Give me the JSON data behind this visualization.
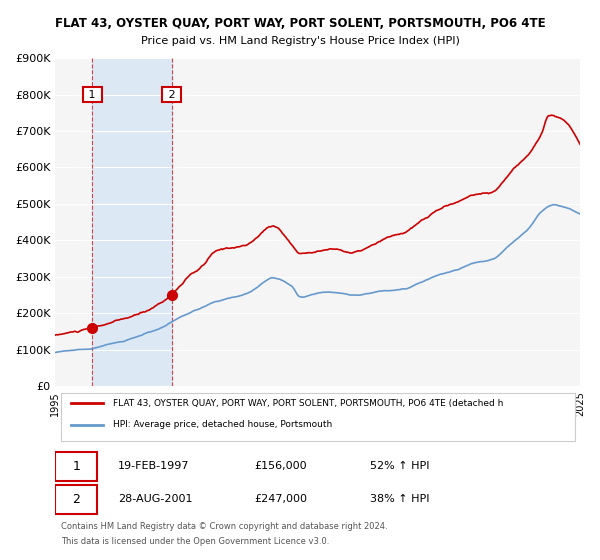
{
  "title": "FLAT 43, OYSTER QUAY, PORT WAY, PORT SOLENT, PORTSMOUTH, PO6 4TE",
  "subtitle": "Price paid vs. HM Land Registry's House Price Index (HPI)",
  "red_label": "FLAT 43, OYSTER QUAY, PORT WAY, PORT SOLENT, PORTSMOUTH, PO6 4TE (detached h",
  "blue_label": "HPI: Average price, detached house, Portsmouth",
  "sale1_date": "19-FEB-1997",
  "sale1_price": 156000,
  "sale1_hpi": "52% ↑ HPI",
  "sale2_date": "28-AUG-2001",
  "sale2_price": 247000,
  "sale2_hpi": "38% ↑ HPI",
  "footer1": "Contains HM Land Registry data © Crown copyright and database right 2024.",
  "footer2": "This data is licensed under the Open Government Licence v3.0.",
  "ylim": [
    0,
    900000
  ],
  "yticks": [
    0,
    100000,
    200000,
    300000,
    400000,
    500000,
    600000,
    700000,
    800000,
    900000
  ],
  "background_color": "#ffffff",
  "plot_bg_color": "#f5f5f5",
  "shaded_region_color": "#dce9f5",
  "grid_color": "#ffffff",
  "red_color": "#cc0000",
  "blue_color": "#6699cc",
  "sale1_x": 1997.12,
  "sale2_x": 2001.65
}
